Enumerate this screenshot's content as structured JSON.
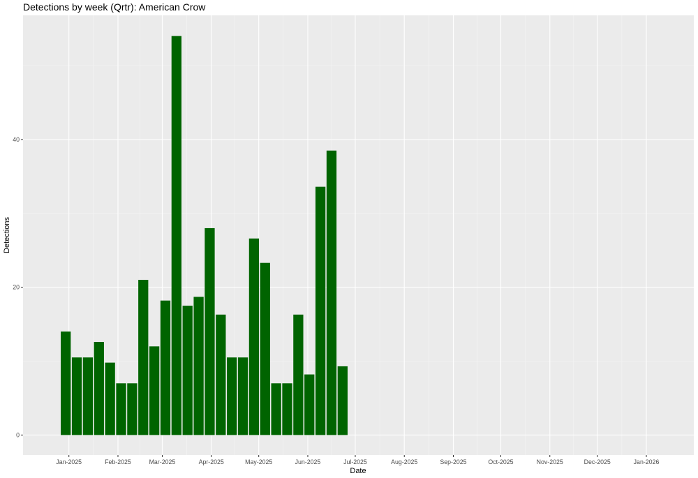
{
  "chart_data": {
    "type": "bar",
    "title": "Detections by week (Qrtr): American Crow",
    "xlabel": "Date",
    "ylabel": "Detections",
    "ylim": [
      -2.7,
      56.8
    ],
    "xlim": [
      "2024-12-03",
      "2026-01-31"
    ],
    "yticks": [
      0,
      20,
      40
    ],
    "xticks": [
      {
        "date": "2025-01-01",
        "label": "Jan-2025"
      },
      {
        "date": "2025-02-01",
        "label": "Feb-2025"
      },
      {
        "date": "2025-03-01",
        "label": "Mar-2025"
      },
      {
        "date": "2025-04-01",
        "label": "Apr-2025"
      },
      {
        "date": "2025-05-01",
        "label": "May-2025"
      },
      {
        "date": "2025-06-01",
        "label": "Jun-2025"
      },
      {
        "date": "2025-07-01",
        "label": "Jul-2025"
      },
      {
        "date": "2025-08-01",
        "label": "Aug-2025"
      },
      {
        "date": "2025-09-01",
        "label": "Sep-2025"
      },
      {
        "date": "2025-10-01",
        "label": "Oct-2025"
      },
      {
        "date": "2025-11-01",
        "label": "Nov-2025"
      },
      {
        "date": "2025-12-01",
        "label": "Dec-2025"
      },
      {
        "date": "2026-01-01",
        "label": "Jan-2026"
      }
    ],
    "x": [
      "2024-12-30",
      "2025-01-06",
      "2025-01-13",
      "2025-01-20",
      "2025-01-27",
      "2025-02-03",
      "2025-02-10",
      "2025-02-17",
      "2025-02-24",
      "2025-03-03",
      "2025-03-10",
      "2025-03-17",
      "2025-03-24",
      "2025-03-31",
      "2025-04-07",
      "2025-04-14",
      "2025-04-21",
      "2025-04-28",
      "2025-05-05",
      "2025-05-12",
      "2025-05-19",
      "2025-05-26",
      "2025-06-02",
      "2025-06-09",
      "2025-06-16",
      "2025-06-23"
    ],
    "values": [
      14,
      10.5,
      10.5,
      12.6,
      9.8,
      7,
      7,
      21,
      12,
      18.2,
      54,
      17.5,
      18.7,
      28,
      16.3,
      10.5,
      10.5,
      26.6,
      23.3,
      7,
      7,
      16.3,
      8.2,
      33.6,
      38.5,
      9.3
    ],
    "bar_width_days": 6.3,
    "grid": true,
    "colors": {
      "bar": "#006400",
      "panel": "#ebebeb",
      "grid_major": "#ffffff",
      "grid_minor": "#f5f5f5",
      "tick": "#333333",
      "tick_label": "#4d4d4d"
    }
  }
}
